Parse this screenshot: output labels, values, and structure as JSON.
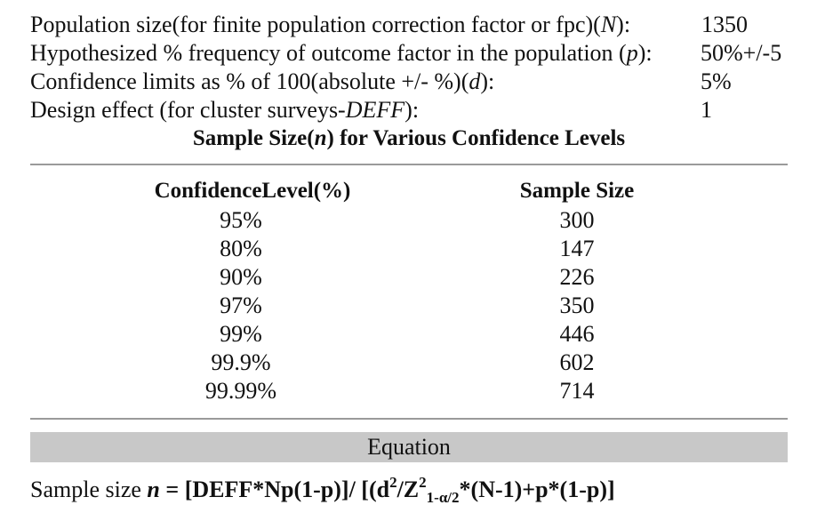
{
  "parameters": [
    {
      "label": "Population size(for finite population correction factor or fpc)(N):",
      "label_parts": {
        "pre": "Population size(for finite population correction factor or fpc)(",
        "var": "N",
        "post": "):"
      },
      "value": "1350"
    },
    {
      "label": "Hypothesized % frequency of outcome factor in the population (p):",
      "label_parts": {
        "pre": "Hypothesized % frequency of outcome factor in the population (",
        "var": "p",
        "post": "):"
      },
      "value": "50%+/-5"
    },
    {
      "label": "Confidence limits as % of 100(absolute +/- %)(d):",
      "label_parts": {
        "pre": "Confidence limits as % of 100(absolute +/- %)(",
        "var": "d",
        "post": "):"
      },
      "value": "5%"
    },
    {
      "label": "Design effect (for cluster surveys-DEFF):",
      "label_parts": {
        "pre": "Design effect (for cluster surveys-",
        "var": "DEFF",
        "post": "):"
      },
      "value": "1"
    }
  ],
  "section_title": {
    "pre": "Sample Size(",
    "var": "n",
    "post": ") for Various Confidence Levels"
  },
  "results": {
    "headers": [
      "ConfidenceLevel(%)",
      "Sample Size"
    ],
    "rows": [
      {
        "level": "95%",
        "size": "300"
      },
      {
        "level": "80%",
        "size": "147"
      },
      {
        "level": "90%",
        "size": "226"
      },
      {
        "level": "97%",
        "size": "350"
      },
      {
        "level": "99%",
        "size": "446"
      },
      {
        "level": "99.9%",
        "size": "602"
      },
      {
        "level": "99.99%",
        "size": "714"
      }
    ]
  },
  "equation": {
    "header": "Equation",
    "prefix": "Sample size ",
    "n": "n",
    "part1": " = [DEFF*Np(1-p)]/ [(d",
    "sup1": "2",
    "part2": "/Z",
    "sup2": "2",
    "sub": "1-α/2",
    "part3": "*(N-1)+p*(1-p)]"
  },
  "colors": {
    "rule": "#9a9a9a",
    "equation_header_bg": "#c8c8c8",
    "text": "#111111"
  }
}
